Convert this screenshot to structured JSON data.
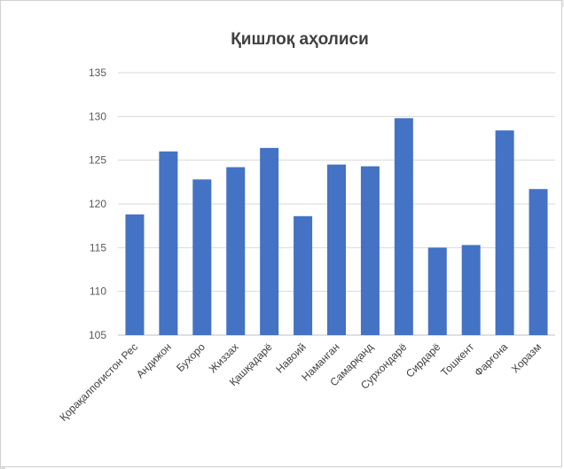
{
  "chart_data": {
    "type": "bar",
    "title": "Қишлоқ аҳолиси",
    "xlabel": "",
    "ylabel": "",
    "ylim": [
      105,
      135
    ],
    "yticks": [
      105,
      110,
      115,
      120,
      125,
      130,
      135
    ],
    "grid": true,
    "legend": "none",
    "bar_color": "#4472c4",
    "categories": [
      "Қорақалпоғистон Рес",
      "Андижон",
      "Бухоро",
      "Жиззах",
      "Қашқадарё",
      "Навоий",
      "Наманган",
      "Самарқанд",
      "Сурхондарё",
      "Сирдарё",
      "Тошкент",
      "Фарғона",
      "Хоразм"
    ],
    "values": [
      118.8,
      126.0,
      122.8,
      124.2,
      126.4,
      118.6,
      124.5,
      124.3,
      129.8,
      115.0,
      115.3,
      128.4,
      121.7
    ]
  }
}
